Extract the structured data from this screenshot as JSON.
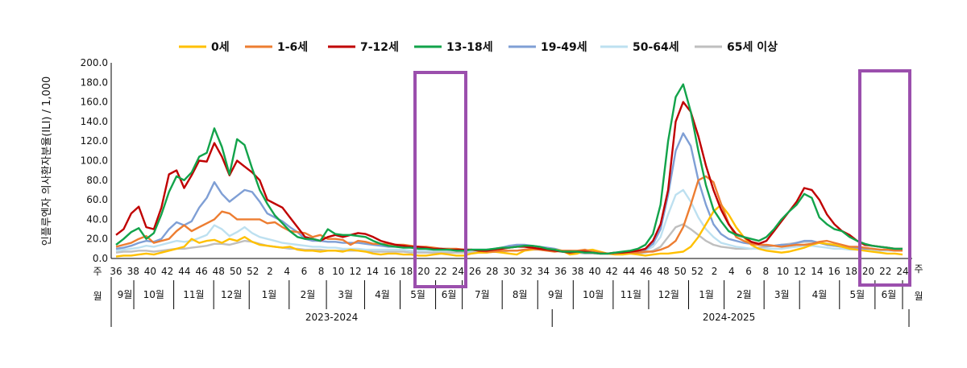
{
  "chart_data": {
    "type": "line",
    "ylabel": "인플루엔자 의사환자분율(ILI) / 1,000",
    "ylim": [
      0,
      200
    ],
    "yticks": [
      "0.0",
      "20.0",
      "40.0",
      "60.0",
      "80.0",
      "100.0",
      "120.0",
      "140.0",
      "160.0",
      "180.0",
      "200.0"
    ],
    "row_label_week": "주",
    "row_label_month": "월",
    "legend": {
      "placement": "top"
    },
    "week_ticks": [
      "36",
      "38",
      "40",
      "42",
      "44",
      "46",
      "48",
      "50",
      "52",
      "2",
      "4",
      "6",
      "8",
      "10",
      "12",
      "14",
      "16",
      "18",
      "20",
      "22",
      "24",
      "26",
      "28",
      "30",
      "32",
      "34",
      "36",
      "38",
      "40",
      "42",
      "44",
      "46",
      "48",
      "50",
      "52",
      "2",
      "4",
      "6",
      "8",
      "10",
      "12",
      "14",
      "16",
      "18",
      "20",
      "22",
      "24"
    ],
    "months": [
      "9월",
      "10월",
      "11월",
      "12월",
      "1월",
      "2월",
      "3월",
      "4월",
      "5월",
      "6월",
      "7월",
      "8월",
      "9월",
      "10월",
      "11월",
      "12월",
      "1월",
      "2월",
      "3월",
      "4월",
      "5월",
      "6월"
    ],
    "seasons": [
      "2023-2024",
      "2024-2025"
    ],
    "series": [
      {
        "name": "0세",
        "color": "#ffc000",
        "values": [
          2,
          3,
          3,
          4,
          5,
          4,
          6,
          8,
          10,
          12,
          20,
          16,
          18,
          19,
          16,
          20,
          18,
          22,
          17,
          14,
          13,
          12,
          11,
          12,
          9,
          8,
          8,
          7,
          8,
          8,
          7,
          9,
          8,
          7,
          5,
          4,
          5,
          5,
          4,
          4,
          3,
          3,
          4,
          5,
          4,
          3,
          3,
          5,
          6,
          6,
          7,
          6,
          5,
          4,
          8,
          9,
          10,
          10,
          9,
          8,
          4,
          5,
          8,
          9,
          7,
          5,
          4,
          4,
          5,
          4,
          3,
          4,
          5,
          5,
          6,
          7,
          12,
          22,
          35,
          48,
          55,
          45,
          32,
          22,
          14,
          10,
          8,
          7,
          6,
          7,
          9,
          11,
          14,
          16,
          15,
          14,
          12,
          10,
          9,
          8,
          7,
          6,
          5,
          5,
          4
        ]
      },
      {
        "name": "1-6세",
        "color": "#ed7d31",
        "values": [
          12,
          14,
          16,
          20,
          23,
          16,
          18,
          20,
          28,
          34,
          28,
          32,
          36,
          40,
          48,
          46,
          40,
          40,
          40,
          40,
          36,
          37,
          32,
          28,
          27,
          26,
          22,
          24,
          20,
          20,
          19,
          14,
          18,
          17,
          15,
          15,
          15,
          14,
          14,
          13,
          12,
          12,
          11,
          10,
          10,
          10,
          9,
          9,
          8,
          7,
          7,
          8,
          8,
          8,
          9,
          10,
          9,
          8,
          7,
          8,
          8,
          8,
          9,
          7,
          6,
          5,
          5,
          6,
          6,
          6,
          7,
          7,
          9,
          12,
          18,
          32,
          55,
          80,
          84,
          78,
          56,
          36,
          22,
          18,
          15,
          14,
          14,
          13,
          12,
          13,
          14,
          14,
          15,
          17,
          18,
          16,
          14,
          12,
          12,
          11,
          10,
          9,
          9,
          8,
          8
        ]
      },
      {
        "name": "7-12세",
        "color": "#c00000",
        "values": [
          24,
          30,
          46,
          53,
          32,
          30,
          52,
          86,
          90,
          72,
          85,
          100,
          99,
          118,
          104,
          85,
          100,
          94,
          88,
          80,
          60,
          56,
          52,
          42,
          32,
          22,
          20,
          18,
          22,
          24,
          22,
          24,
          26,
          25,
          22,
          18,
          16,
          14,
          13,
          12,
          12,
          11,
          10,
          10,
          9,
          9,
          9,
          9,
          8,
          8,
          9,
          10,
          11,
          12,
          12,
          11,
          10,
          9,
          8,
          7,
          6,
          7,
          7,
          6,
          5,
          5,
          6,
          6,
          7,
          8,
          10,
          18,
          35,
          70,
          140,
          160,
          150,
          125,
          95,
          70,
          50,
          35,
          25,
          22,
          17,
          15,
          18,
          28,
          38,
          48,
          58,
          72,
          70,
          60,
          45,
          35,
          28,
          24,
          18,
          14,
          13,
          12,
          11,
          10,
          10
        ]
      },
      {
        "name": "13-18세",
        "color": "#12a34a",
        "values": [
          14,
          20,
          27,
          31,
          20,
          26,
          45,
          68,
          84,
          80,
          88,
          104,
          108,
          133,
          114,
          86,
          122,
          116,
          92,
          70,
          56,
          44,
          36,
          28,
          22,
          20,
          20,
          18,
          30,
          25,
          24,
          24,
          23,
          22,
          18,
          15,
          13,
          12,
          11,
          11,
          10,
          10,
          9,
          9,
          9,
          8,
          8,
          9,
          9,
          9,
          10,
          11,
          11,
          12,
          13,
          13,
          12,
          10,
          9,
          7,
          7,
          7,
          6,
          6,
          5,
          5,
          6,
          7,
          8,
          10,
          14,
          25,
          55,
          120,
          165,
          178,
          150,
          110,
          75,
          50,
          38,
          28,
          24,
          22,
          20,
          18,
          22,
          30,
          40,
          48,
          55,
          66,
          62,
          42,
          35,
          30,
          28,
          22,
          18,
          15,
          13,
          12,
          11,
          10,
          10
        ]
      },
      {
        "name": "19-49세",
        "color": "#7f9fd5",
        "values": [
          10,
          11,
          13,
          16,
          18,
          17,
          20,
          30,
          37,
          34,
          38,
          52,
          62,
          78,
          66,
          58,
          64,
          70,
          68,
          58,
          46,
          42,
          38,
          32,
          27,
          20,
          18,
          18,
          17,
          17,
          16,
          16,
          16,
          15,
          14,
          13,
          12,
          12,
          12,
          11,
          11,
          10,
          10,
          10,
          10,
          9,
          9,
          9,
          9,
          9,
          10,
          11,
          13,
          14,
          14,
          13,
          12,
          11,
          10,
          8,
          8,
          7,
          6,
          6,
          5,
          5,
          5,
          5,
          6,
          7,
          9,
          15,
          30,
          65,
          110,
          128,
          115,
          80,
          55,
          35,
          25,
          20,
          18,
          16,
          15,
          14,
          13,
          13,
          14,
          14,
          16,
          18,
          18,
          16,
          14,
          13,
          12,
          12,
          11,
          10,
          10,
          9,
          9,
          8,
          8
        ]
      },
      {
        "name": "50-64세",
        "color": "#bde0f0",
        "values": [
          8,
          9,
          10,
          11,
          13,
          12,
          14,
          16,
          18,
          17,
          18,
          21,
          24,
          34,
          30,
          23,
          27,
          32,
          26,
          22,
          20,
          18,
          16,
          15,
          14,
          13,
          12,
          12,
          11,
          11,
          10,
          10,
          10,
          9,
          9,
          9,
          9,
          9,
          9,
          8,
          8,
          8,
          8,
          8,
          8,
          8,
          8,
          8,
          8,
          9,
          9,
          10,
          11,
          12,
          13,
          12,
          11,
          10,
          9,
          8,
          7,
          7,
          6,
          6,
          5,
          5,
          5,
          5,
          6,
          6,
          8,
          12,
          22,
          45,
          65,
          70,
          58,
          42,
          30,
          22,
          16,
          14,
          12,
          11,
          10,
          10,
          10,
          10,
          10,
          11,
          12,
          13,
          13,
          12,
          11,
          10,
          10,
          9,
          9,
          9,
          8,
          8,
          8,
          8,
          8
        ]
      },
      {
        "name": "65세 이상",
        "color": "#bfbfbf",
        "values": [
          6,
          7,
          7,
          8,
          8,
          7,
          8,
          9,
          10,
          10,
          11,
          12,
          13,
          15,
          15,
          14,
          16,
          18,
          17,
          15,
          13,
          12,
          11,
          10,
          10,
          9,
          9,
          9,
          8,
          8,
          8,
          8,
          8,
          8,
          7,
          7,
          7,
          7,
          7,
          6,
          6,
          6,
          6,
          6,
          6,
          6,
          6,
          6,
          6,
          6,
          7,
          7,
          8,
          8,
          9,
          9,
          9,
          8,
          8,
          7,
          6,
          6,
          5,
          5,
          5,
          5,
          5,
          5,
          5,
          5,
          6,
          8,
          12,
          22,
          32,
          35,
          30,
          24,
          18,
          14,
          12,
          11,
          10,
          10,
          10,
          11,
          12,
          13,
          14,
          15,
          16,
          17,
          17,
          16,
          14,
          13,
          12,
          11,
          10,
          9,
          9,
          8,
          8,
          8,
          8
        ]
      }
    ]
  }
}
